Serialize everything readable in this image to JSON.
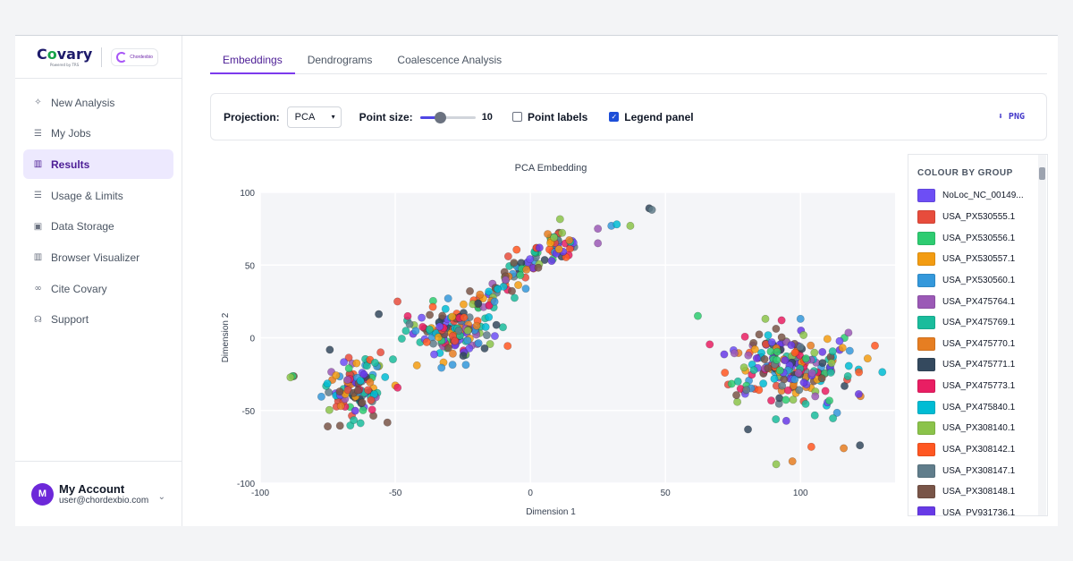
{
  "brand": {
    "name_a": "C",
    "name_o": "o",
    "name_b": "vary",
    "tagline": "Powered by TRS",
    "partner": "Chordexbio"
  },
  "sidebar": {
    "items": [
      {
        "label": "New Analysis",
        "icon": "sparkle-icon"
      },
      {
        "label": "My Jobs",
        "icon": "list-icon"
      },
      {
        "label": "Results",
        "icon": "bar-chart-icon",
        "active": true
      },
      {
        "label": "Usage & Limits",
        "icon": "list-icon"
      },
      {
        "label": "Data Storage",
        "icon": "chip-icon"
      },
      {
        "label": "Browser Visualizer",
        "icon": "bar-chart-icon"
      },
      {
        "label": "Cite Covary",
        "icon": "link-icon"
      },
      {
        "label": "Support",
        "icon": "headset-icon"
      }
    ]
  },
  "account": {
    "initial": "M",
    "name": "My Account",
    "email": "user@chordexbio.com"
  },
  "tabs": [
    {
      "label": "Embeddings",
      "active": true
    },
    {
      "label": "Dendrograms"
    },
    {
      "label": "Coalescence Analysis"
    }
  ],
  "toolbar": {
    "projection_label": "Projection:",
    "projection_value": "PCA",
    "point_size_label": "Point size:",
    "point_size_value": "10",
    "point_size_fraction": 0.36,
    "point_labels_label": "Point labels",
    "point_labels_checked": false,
    "legend_panel_label": "Legend panel",
    "legend_panel_checked": true,
    "png_label": "⬇ PNG"
  },
  "legend": {
    "title": "COLOUR BY GROUP",
    "items": [
      {
        "label": "NoLoc_NC_00149...",
        "color": "#6d4ef5"
      },
      {
        "label": "USA_PX530555.1",
        "color": "#e74c3c"
      },
      {
        "label": "USA_PX530556.1",
        "color": "#2ecc71"
      },
      {
        "label": "USA_PX530557.1",
        "color": "#f39c12"
      },
      {
        "label": "USA_PX530560.1",
        "color": "#3498db"
      },
      {
        "label": "USA_PX475764.1",
        "color": "#9b59b6"
      },
      {
        "label": "USA_PX475769.1",
        "color": "#1abc9c"
      },
      {
        "label": "USA_PX475770.1",
        "color": "#e67e22"
      },
      {
        "label": "USA_PX475771.1",
        "color": "#34495e"
      },
      {
        "label": "USA_PX475773.1",
        "color": "#e91e63"
      },
      {
        "label": "USA_PX475840.1",
        "color": "#00bcd4"
      },
      {
        "label": "USA_PX308140.1",
        "color": "#8bc34a"
      },
      {
        "label": "USA_PX308142.1",
        "color": "#ff5722"
      },
      {
        "label": "USA_PX308147.1",
        "color": "#607d8b"
      },
      {
        "label": "USA_PX308148.1",
        "color": "#795548"
      },
      {
        "label": "USA_PV931736.1",
        "color": "#673ae6"
      }
    ]
  },
  "chart_data": {
    "type": "scatter",
    "title": "PCA Embedding",
    "xlabel": "Dimension 1",
    "ylabel": "Dimension 2",
    "xlim": [
      -100,
      135
    ],
    "ylim": [
      -100,
      100
    ],
    "xticks": [
      -100,
      -50,
      0,
      50,
      100
    ],
    "yticks": [
      100,
      50,
      0,
      -50,
      -100
    ],
    "grid": true,
    "legend": "right-panel",
    "clusters": [
      {
        "cx": -65,
        "cy": -35,
        "sx": 8,
        "sy": 14,
        "n": 110
      },
      {
        "cx": -88,
        "cy": -27,
        "sx": 1,
        "sy": 1,
        "n": 3
      },
      {
        "cx": -30,
        "cy": 5,
        "sx": 10,
        "sy": 13,
        "n": 140
      },
      {
        "cx": -10,
        "cy": 40,
        "sx": 9,
        "sy": 11,
        "n": 70
      },
      {
        "cx": 10,
        "cy": 65,
        "sx": 5,
        "sy": 7,
        "n": 45
      },
      {
        "cx": 95,
        "cy": -20,
        "sx": 17,
        "sy": 17,
        "n": 220
      }
    ],
    "outliers": [
      {
        "x": -42,
        "y": -19,
        "g": 3
      },
      {
        "x": 25,
        "y": 75,
        "g": 5
      },
      {
        "x": 25,
        "y": 65,
        "g": 5
      },
      {
        "x": 30,
        "y": 77,
        "g": 4
      },
      {
        "x": 32,
        "y": 78,
        "g": 10
      },
      {
        "x": 37,
        "y": 77,
        "g": 11
      },
      {
        "x": 44,
        "y": 89,
        "g": 8
      },
      {
        "x": 45,
        "y": 88,
        "g": 13
      },
      {
        "x": 91,
        "y": -87,
        "g": 11
      },
      {
        "x": 97,
        "y": -85,
        "g": 7
      },
      {
        "x": 104,
        "y": -75,
        "g": 12
      },
      {
        "x": 122,
        "y": -74,
        "g": 8
      },
      {
        "x": 116,
        "y": -76,
        "g": 7
      },
      {
        "x": 93,
        "y": 12,
        "g": 9
      },
      {
        "x": 100,
        "y": 13,
        "g": 4
      },
      {
        "x": 87,
        "y": 13,
        "g": 11
      },
      {
        "x": -75,
        "y": -61,
        "g": 14
      },
      {
        "x": 62,
        "y": 15,
        "g": 2
      }
    ]
  }
}
